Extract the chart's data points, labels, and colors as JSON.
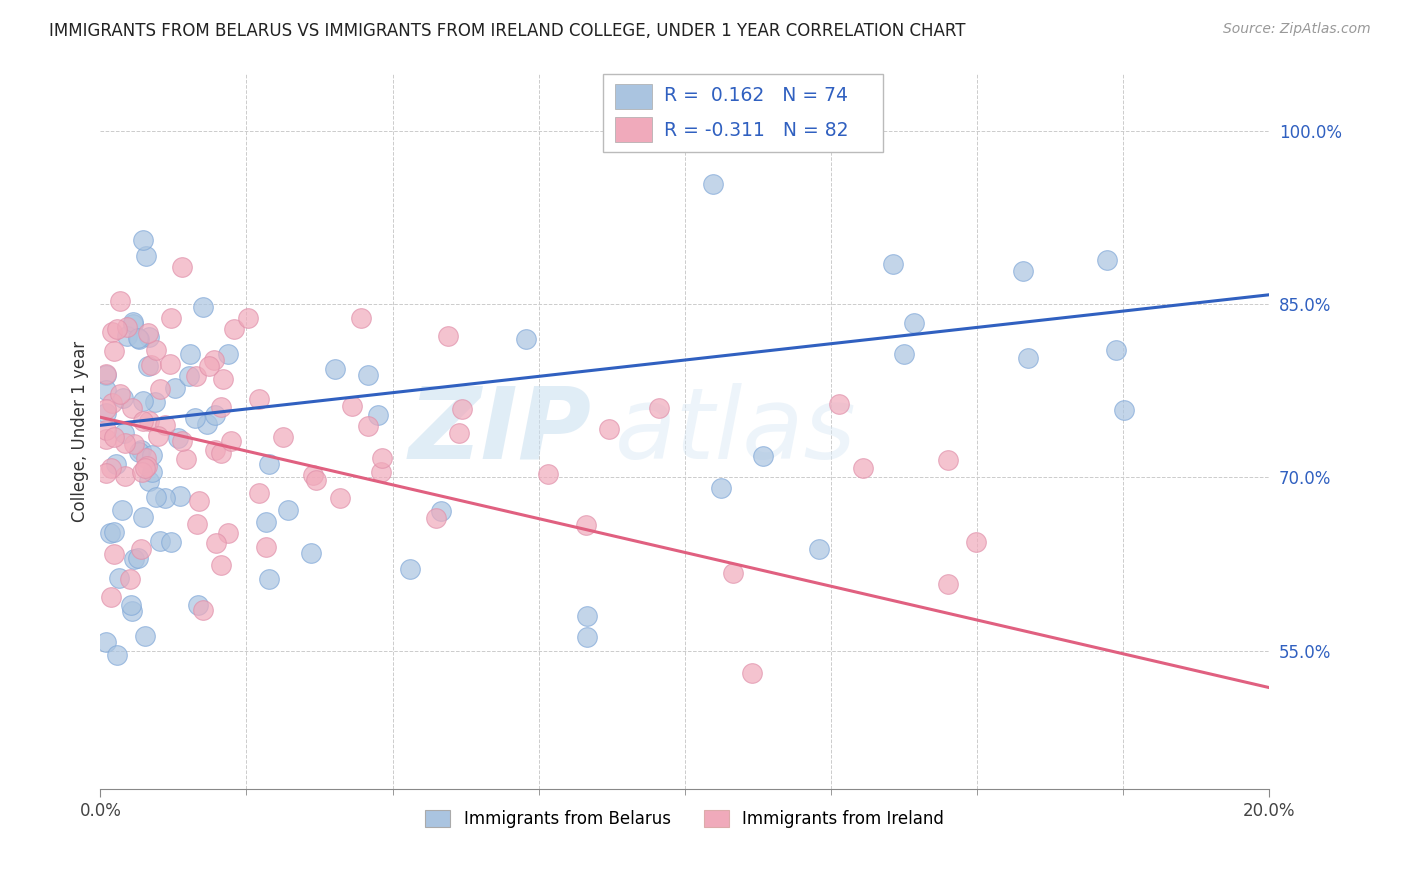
{
  "title": "IMMIGRANTS FROM BELARUS VS IMMIGRANTS FROM IRELAND COLLEGE, UNDER 1 YEAR CORRELATION CHART",
  "source": "Source: ZipAtlas.com",
  "ylabel": "College, Under 1 year",
  "x_min": 0.0,
  "x_max": 0.2,
  "y_min": 0.43,
  "y_max": 1.05,
  "x_tick_labels_outer": [
    "0.0%",
    "20.0%"
  ],
  "x_tick_positions_outer": [
    0.0,
    0.2
  ],
  "x_tick_positions_inner": [
    0.025,
    0.05,
    0.075,
    0.1,
    0.125,
    0.15,
    0.175
  ],
  "right_y_tick_labels": [
    "55.0%",
    "70.0%",
    "85.0%",
    "100.0%"
  ],
  "right_y_tick_positions": [
    0.55,
    0.7,
    0.85,
    1.0
  ],
  "color_blue": "#aac4e0",
  "color_pink": "#f0aabb",
  "line_color_blue": "#3060c0",
  "line_color_pink": "#e06080",
  "watermark_zip": "ZIP",
  "watermark_atlas": "atlas",
  "blue_trend_x": [
    0.0,
    0.2
  ],
  "blue_trend_y": [
    0.745,
    0.858
  ],
  "pink_trend_x": [
    0.0,
    0.2
  ],
  "pink_trend_y": [
    0.752,
    0.518
  ]
}
